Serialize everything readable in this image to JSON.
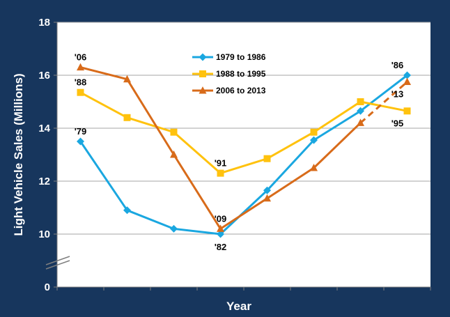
{
  "chart_data": {
    "type": "line",
    "title": "",
    "xlabel": "Year",
    "ylabel": "Light Vehicle Sales (Millions)",
    "ylim": [
      0,
      18
    ],
    "y_axis_break": true,
    "yticks": [
      0,
      10,
      12,
      14,
      16,
      18
    ],
    "grid": true,
    "legend_position": "top-center",
    "colors": {
      "background": "#17365d",
      "plot_background": "#ffffff",
      "gridline": "#a6a6a6"
    },
    "x": [
      1,
      2,
      3,
      4,
      5,
      6,
      7,
      8
    ],
    "series": [
      {
        "name": "1979 to 1986",
        "color": "#1aa7e0",
        "marker": "diamond",
        "values": [
          13.5,
          10.9,
          10.2,
          10.0,
          11.65,
          13.55,
          14.65,
          16.0
        ]
      },
      {
        "name": "1988 to 1995",
        "color": "#ffc20e",
        "marker": "square",
        "values": [
          15.35,
          14.4,
          13.85,
          12.3,
          12.85,
          13.85,
          15.0,
          14.65
        ]
      },
      {
        "name": "2006 to 2013",
        "color": "#d86b1a",
        "marker": "triangle",
        "values": [
          16.3,
          15.85,
          13.0,
          10.2,
          11.35,
          12.5,
          14.2,
          15.75
        ],
        "dashed_last_segment": true
      }
    ],
    "annotations": [
      {
        "text": "'06",
        "x": 1,
        "y": 16.3,
        "position": "above"
      },
      {
        "text": "'88",
        "x": 1,
        "y": 15.35,
        "position": "above"
      },
      {
        "text": "'79",
        "x": 1,
        "y": 13.5,
        "position": "above"
      },
      {
        "text": "'91",
        "x": 4,
        "y": 12.3,
        "position": "above"
      },
      {
        "text": "'09",
        "x": 4,
        "y": 10.2,
        "position": "above"
      },
      {
        "text": "'82",
        "x": 4,
        "y": 10.0,
        "position": "below"
      },
      {
        "text": "'86",
        "x": 8,
        "y": 16.0,
        "position": "above-left"
      },
      {
        "text": "'13",
        "x": 8,
        "y": 15.75,
        "position": "below-left"
      },
      {
        "text": "'95",
        "x": 8,
        "y": 14.65,
        "position": "below-left"
      }
    ]
  }
}
